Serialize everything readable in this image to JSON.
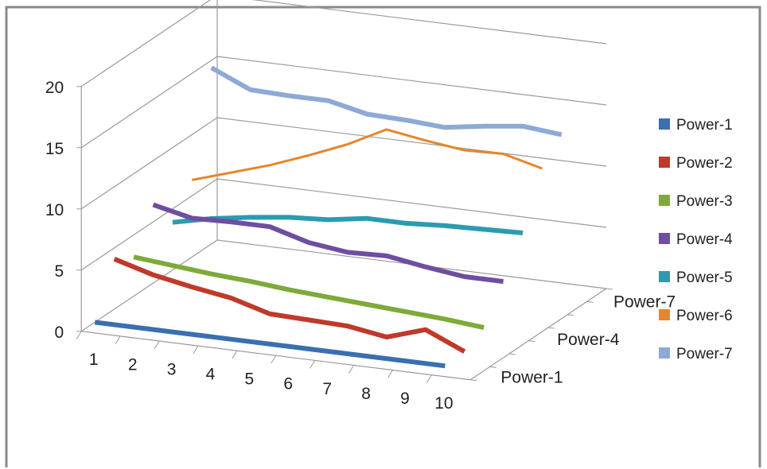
{
  "chart_data": {
    "type": "line",
    "style": "3d-line",
    "title": "",
    "xlabel": "",
    "ylabel": "",
    "ylim": [
      0,
      20
    ],
    "yticks": [
      "0",
      "5",
      "10",
      "15",
      "20"
    ],
    "categories": [
      "1",
      "2",
      "3",
      "4",
      "5",
      "6",
      "7",
      "8",
      "9",
      "10"
    ],
    "depth_labels": [
      "Power-1",
      "Power-4",
      "Power-7"
    ],
    "grid": true,
    "legend_position": "right",
    "series": [
      {
        "name": "Power-1",
        "color": "#3a6fb0",
        "values": [
          0.5,
          0.5,
          0.5,
          0.5,
          0.5,
          0.5,
          0.5,
          0.5,
          0.5,
          0.5
        ]
      },
      {
        "name": "Power-2",
        "color": "#c0392b",
        "values": [
          4.6,
          3.7,
          3.1,
          2.6,
          1.7,
          1.6,
          1.5,
          1.0,
          2.0,
          0.6
        ]
      },
      {
        "name": "Power-3",
        "color": "#7daa3a",
        "values": [
          3.7,
          3.4,
          3.1,
          2.9,
          2.6,
          2.4,
          2.2,
          2.0,
          1.8,
          1.5
        ]
      },
      {
        "name": "Power-4",
        "color": "#6f4ea1",
        "values": [
          6.9,
          6.2,
          6.3,
          6.3,
          5.4,
          5.0,
          5.1,
          4.6,
          4.2,
          4.2
        ]
      },
      {
        "name": "Power-5",
        "color": "#2b9bb0",
        "values": [
          4.4,
          5.1,
          5.6,
          6.0,
          6.2,
          6.7,
          6.7,
          6.9,
          7.0,
          7.1
        ]
      },
      {
        "name": "Power-6",
        "color": "#e8852a",
        "values": [
          6.8,
          7.8,
          8.8,
          10.0,
          11.3,
          12.9,
          12.4,
          12.0,
          12.1,
          11.3
        ]
      },
      {
        "name": "Power-7",
        "color": "#8fa9d6",
        "values": [
          14.9,
          13.5,
          13.4,
          13.4,
          12.7,
          12.6,
          12.4,
          12.9,
          13.3,
          13.0
        ]
      }
    ]
  }
}
